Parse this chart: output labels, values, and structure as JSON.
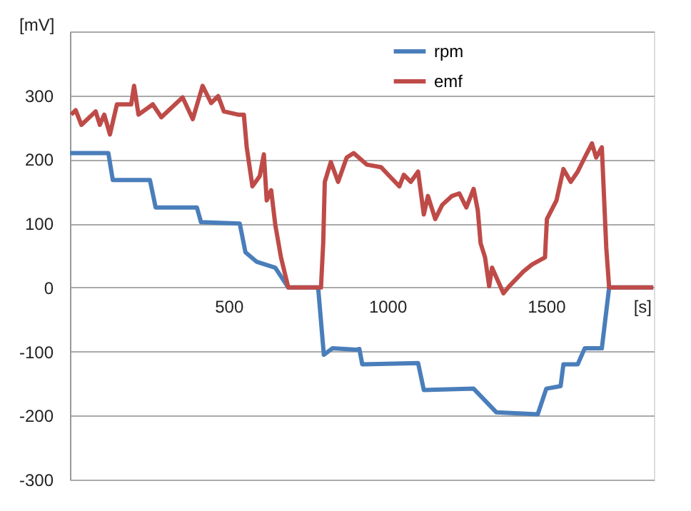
{
  "chart_data": {
    "type": "line",
    "xlabel": "[s]",
    "ylabel": "[mV]",
    "xlim": [
      0,
      1840
    ],
    "xticks": [
      500,
      1000,
      1500
    ],
    "ylim": [
      -300,
      400
    ],
    "yticks": [
      -300,
      -200,
      -100,
      0,
      100,
      200,
      300,
      {
        "value": 400,
        "label": null
      }
    ],
    "grid": "y",
    "legend": "top",
    "line_style": "solid",
    "marker": "none",
    "series": [
      {
        "name": "rpm",
        "color": "#4a7ebb",
        "x": [
          0,
          121,
          135,
          252,
          270,
          400,
          413,
          535,
          553,
          589,
          647,
          688,
          782,
          800,
          827,
          903,
          912,
          921,
          1097,
          1115,
          1272,
          1344,
          1474,
          1501,
          1546,
          1555,
          1600,
          1622,
          1676,
          1699,
          1838
        ],
        "values": [
          210,
          210,
          168,
          168,
          125,
          125,
          102,
          100,
          55,
          40,
          31,
          0,
          0,
          -105,
          -95,
          -97,
          -96,
          -120,
          -118,
          -160,
          -158,
          -195,
          -198,
          -158,
          -154,
          -120,
          -120,
          -95,
          -95,
          0,
          0
        ]
      },
      {
        "name": "emf",
        "color": "#be4b48",
        "x": [
          4,
          18,
          36,
          81,
          94,
          108,
          126,
          148,
          193,
          202,
          216,
          261,
          288,
          355,
          387,
          418,
          445,
          467,
          485,
          530,
          548,
          557,
          575,
          598,
          611,
          620,
          634,
          647,
          665,
          688,
          791,
          798,
          803,
          822,
          845,
          872,
          894,
          935,
          980,
          1007,
          1038,
          1052,
          1074,
          1097,
          1115,
          1128,
          1151,
          1173,
          1204,
          1227,
          1249,
          1272,
          1285,
          1294,
          1308,
          1321,
          1330,
          1366,
          1384,
          1429,
          1456,
          1497,
          1499,
          1503,
          1533,
          1555,
          1578,
          1600,
          1622,
          1645,
          1658,
          1676,
          1690,
          1699,
          1838
        ],
        "values": [
          270,
          277,
          254,
          275,
          254,
          270,
          239,
          286,
          286,
          315,
          270,
          286,
          266,
          297,
          263,
          315,
          288,
          299,
          275,
          270,
          270,
          219,
          158,
          174,
          208,
          136,
          152,
          98,
          47,
          0,
          0,
          69,
          165,
          196,
          165,
          203,
          210,
          192,
          188,
          174,
          158,
          176,
          165,
          181,
          114,
          143,
          107,
          129,
          143,
          147,
          125,
          154,
          121,
          69,
          47,
          2,
          31,
          -9,
          2,
          25,
          36,
          47,
          69,
          107,
          136,
          185,
          165,
          181,
          203,
          225,
          203,
          219,
          62,
          0,
          0
        ]
      }
    ]
  }
}
